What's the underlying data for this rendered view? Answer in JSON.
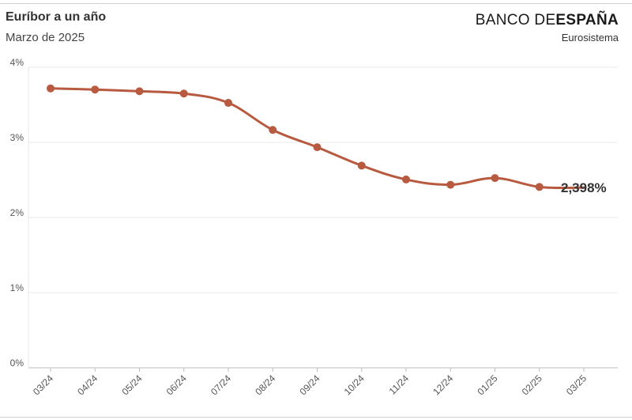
{
  "header": {
    "title": "Euríbor a un año",
    "subtitle": "Marzo de 2025",
    "logo_light": "BANCO DE",
    "logo_bold": "ESPAÑA",
    "logo_sub": "Eurosistema"
  },
  "chart_data": {
    "type": "line",
    "title": "Euríbor a un año",
    "subtitle": "Marzo de 2025",
    "x": [
      "03/24",
      "04/24",
      "05/24",
      "06/24",
      "07/24",
      "08/24",
      "09/24",
      "10/24",
      "11/24",
      "12/24",
      "01/25",
      "02/25",
      "03/25"
    ],
    "series": [
      {
        "values": [
          3.718,
          3.703,
          3.68,
          3.65,
          3.526,
          3.166,
          2.936,
          2.691,
          2.506,
          2.436,
          2.525,
          2.407,
          2.398
        ]
      }
    ],
    "markers_on": [
      "03/24",
      "04/24",
      "05/24",
      "06/24",
      "07/24",
      "08/24",
      "09/24",
      "10/24",
      "11/24",
      "12/24",
      "01/25",
      "02/25"
    ],
    "last_value_label": "2,398%",
    "y_ticks": [
      "0%",
      "1%",
      "2%",
      "3%",
      "4%"
    ],
    "ylim": [
      0,
      4
    ],
    "grid": true,
    "line_color": "#b85a40"
  }
}
